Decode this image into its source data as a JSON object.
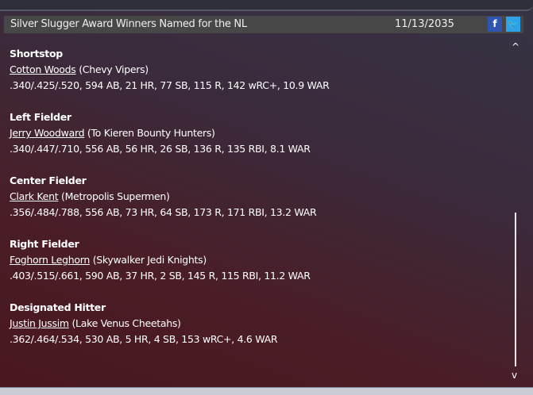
{
  "header": {
    "title": "Silver Slugger Award Winners Named for the NL",
    "date": "11/13/2035",
    "facebook_icon": "f",
    "twitter_icon": "🐦"
  },
  "entries": [
    {
      "position": "Shortstop",
      "player": "Cotton Woods",
      "team": "(Chevy Vipers)",
      "stats": ".340/.425/.520, 594 AB, 21 HR, 77 SB, 115 R, 142 wRC+, 10.9 WAR"
    },
    {
      "position": "Left Fielder",
      "player": "Jerry Woodward",
      "team": "(To Kieren Bounty Hunters)",
      "stats": ".340/.447/.710, 556 AB, 56 HR, 26 SB, 136 R, 135 RBI, 8.1 WAR"
    },
    {
      "position": "Center Fielder",
      "player": "Clark Kent",
      "team": "(Metropolis Supermen)",
      "stats": ".356/.484/.788, 556 AB, 73 HR, 64 SB, 173 R, 171 RBI, 13.2 WAR"
    },
    {
      "position": "Right Fielder",
      "player": "Foghorn Leghorn",
      "team": "(Skywalker Jedi Knights)",
      "stats": ".403/.515/.661, 590 AB, 37 HR, 2 SB, 145 R, 115 RBI, 11.2 WAR"
    },
    {
      "position": "Designated Hitter",
      "player": "Justin Jussim",
      "team": "(Lake Venus Cheetahs)",
      "stats": ".362/.464/.534, 530 AB, 5 HR, 4 SB, 153 wRC+, 4.6 WAR"
    }
  ],
  "scrollbar": {
    "up": "^",
    "down": "v",
    "position_percent": 100
  }
}
